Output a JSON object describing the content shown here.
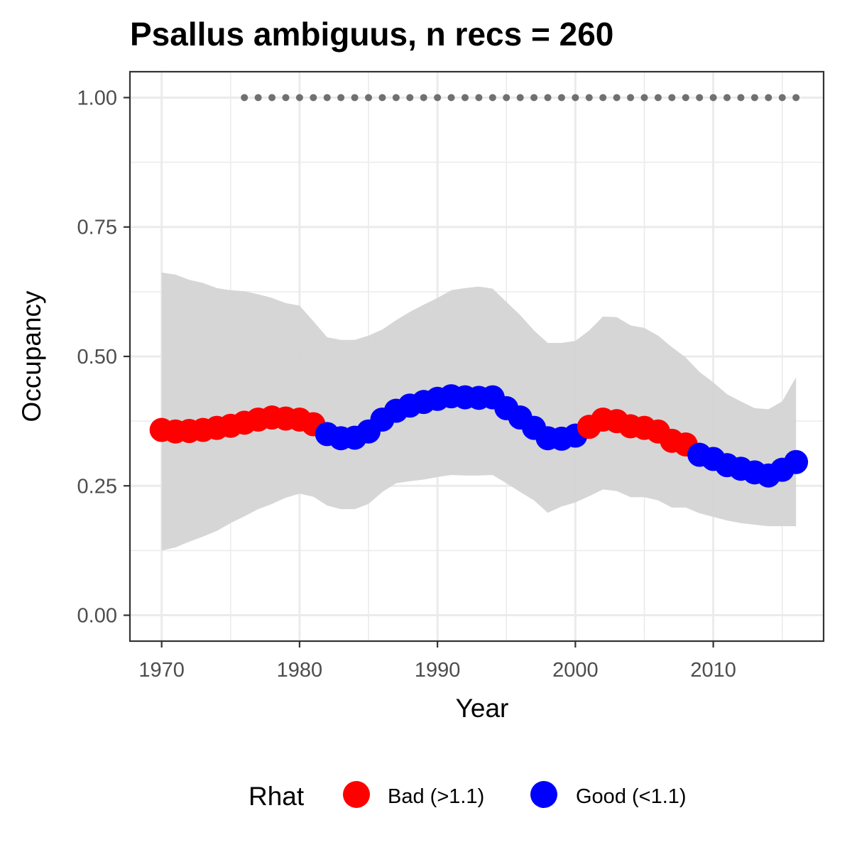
{
  "chart_data": {
    "type": "line",
    "title": "Psallus ambiguus, n recs = 260",
    "xlabel": "Year",
    "ylabel": "Occupancy",
    "xlim": [
      1967.7,
      2018
    ],
    "ylim": [
      -0.05,
      1.05
    ],
    "x_ticks": [
      1970,
      1980,
      1990,
      2000,
      2010
    ],
    "x_tick_labels": [
      "1970",
      "1980",
      "1990",
      "2000",
      "2010"
    ],
    "y_ticks": [
      0,
      0.25,
      0.5,
      0.75,
      1.0
    ],
    "y_tick_labels": [
      "0.00",
      "0.25",
      "0.50",
      "0.75",
      "1.00"
    ],
    "grid": true,
    "legend": {
      "title": "Rhat",
      "placement": "bottom",
      "entries": [
        {
          "label": "Bad (>1.1)",
          "color": "#ff0000"
        },
        {
          "label": "Good (<1.1)",
          "color": "#0000ff"
        }
      ]
    },
    "colors": {
      "bad": "#ff0000",
      "good": "#0000ff",
      "ribbon": "#d3d3d3",
      "record_dots": "#707070"
    },
    "years": [
      1970,
      1971,
      1972,
      1973,
      1974,
      1975,
      1976,
      1977,
      1978,
      1979,
      1980,
      1981,
      1982,
      1983,
      1984,
      1985,
      1986,
      1987,
      1988,
      1989,
      1990,
      1991,
      1992,
      1993,
      1994,
      1995,
      1996,
      1997,
      1998,
      1999,
      2000,
      2001,
      2002,
      2003,
      2004,
      2005,
      2006,
      2007,
      2008,
      2009,
      2010,
      2011,
      2012,
      2013,
      2014,
      2015,
      2016
    ],
    "occupancy": [
      0.358,
      0.355,
      0.356,
      0.358,
      0.362,
      0.366,
      0.372,
      0.378,
      0.382,
      0.38,
      0.378,
      0.369,
      0.35,
      0.342,
      0.343,
      0.355,
      0.378,
      0.395,
      0.405,
      0.412,
      0.418,
      0.423,
      0.421,
      0.42,
      0.421,
      0.4,
      0.382,
      0.362,
      0.342,
      0.341,
      0.347,
      0.364,
      0.378,
      0.375,
      0.365,
      0.362,
      0.355,
      0.337,
      0.33,
      0.31,
      0.302,
      0.29,
      0.283,
      0.276,
      0.27,
      0.281,
      0.296
    ],
    "rhat_status": [
      "bad",
      "bad",
      "bad",
      "bad",
      "bad",
      "bad",
      "bad",
      "bad",
      "bad",
      "bad",
      "bad",
      "bad",
      "good",
      "good",
      "good",
      "good",
      "good",
      "good",
      "good",
      "good",
      "good",
      "good",
      "good",
      "good",
      "good",
      "good",
      "good",
      "good",
      "good",
      "good",
      "good",
      "bad",
      "bad",
      "bad",
      "bad",
      "bad",
      "bad",
      "bad",
      "bad",
      "good",
      "good",
      "good",
      "good",
      "good",
      "good",
      "good",
      "good"
    ],
    "upper_ci": [
      0.662,
      0.658,
      0.648,
      0.642,
      0.632,
      0.628,
      0.626,
      0.62,
      0.613,
      0.603,
      0.598,
      0.568,
      0.537,
      0.532,
      0.532,
      0.54,
      0.552,
      0.57,
      0.586,
      0.6,
      0.613,
      0.628,
      0.632,
      0.635,
      0.631,
      0.605,
      0.58,
      0.55,
      0.526,
      0.526,
      0.53,
      0.55,
      0.577,
      0.576,
      0.56,
      0.555,
      0.54,
      0.518,
      0.498,
      0.47,
      0.45,
      0.427,
      0.413,
      0.4,
      0.398,
      0.413,
      0.46
    ],
    "lower_ci": [
      0.125,
      0.131,
      0.142,
      0.152,
      0.163,
      0.178,
      0.191,
      0.205,
      0.215,
      0.227,
      0.235,
      0.229,
      0.212,
      0.205,
      0.205,
      0.215,
      0.238,
      0.255,
      0.259,
      0.262,
      0.267,
      0.271,
      0.27,
      0.27,
      0.271,
      0.255,
      0.238,
      0.222,
      0.198,
      0.21,
      0.218,
      0.23,
      0.243,
      0.24,
      0.228,
      0.228,
      0.222,
      0.208,
      0.208,
      0.197,
      0.19,
      0.183,
      0.178,
      0.175,
      0.172,
      0.172,
      0.172
    ],
    "record_years": [
      1976,
      1977,
      1978,
      1979,
      1980,
      1981,
      1982,
      1983,
      1984,
      1985,
      1986,
      1987,
      1988,
      1989,
      1990,
      1991,
      1992,
      1993,
      1994,
      1995,
      1996,
      1997,
      1998,
      1999,
      2000,
      2001,
      2002,
      2003,
      2004,
      2005,
      2006,
      2007,
      2008,
      2009,
      2010,
      2011,
      2012,
      2013,
      2014,
      2015,
      2016
    ],
    "record_value": 1.0
  }
}
